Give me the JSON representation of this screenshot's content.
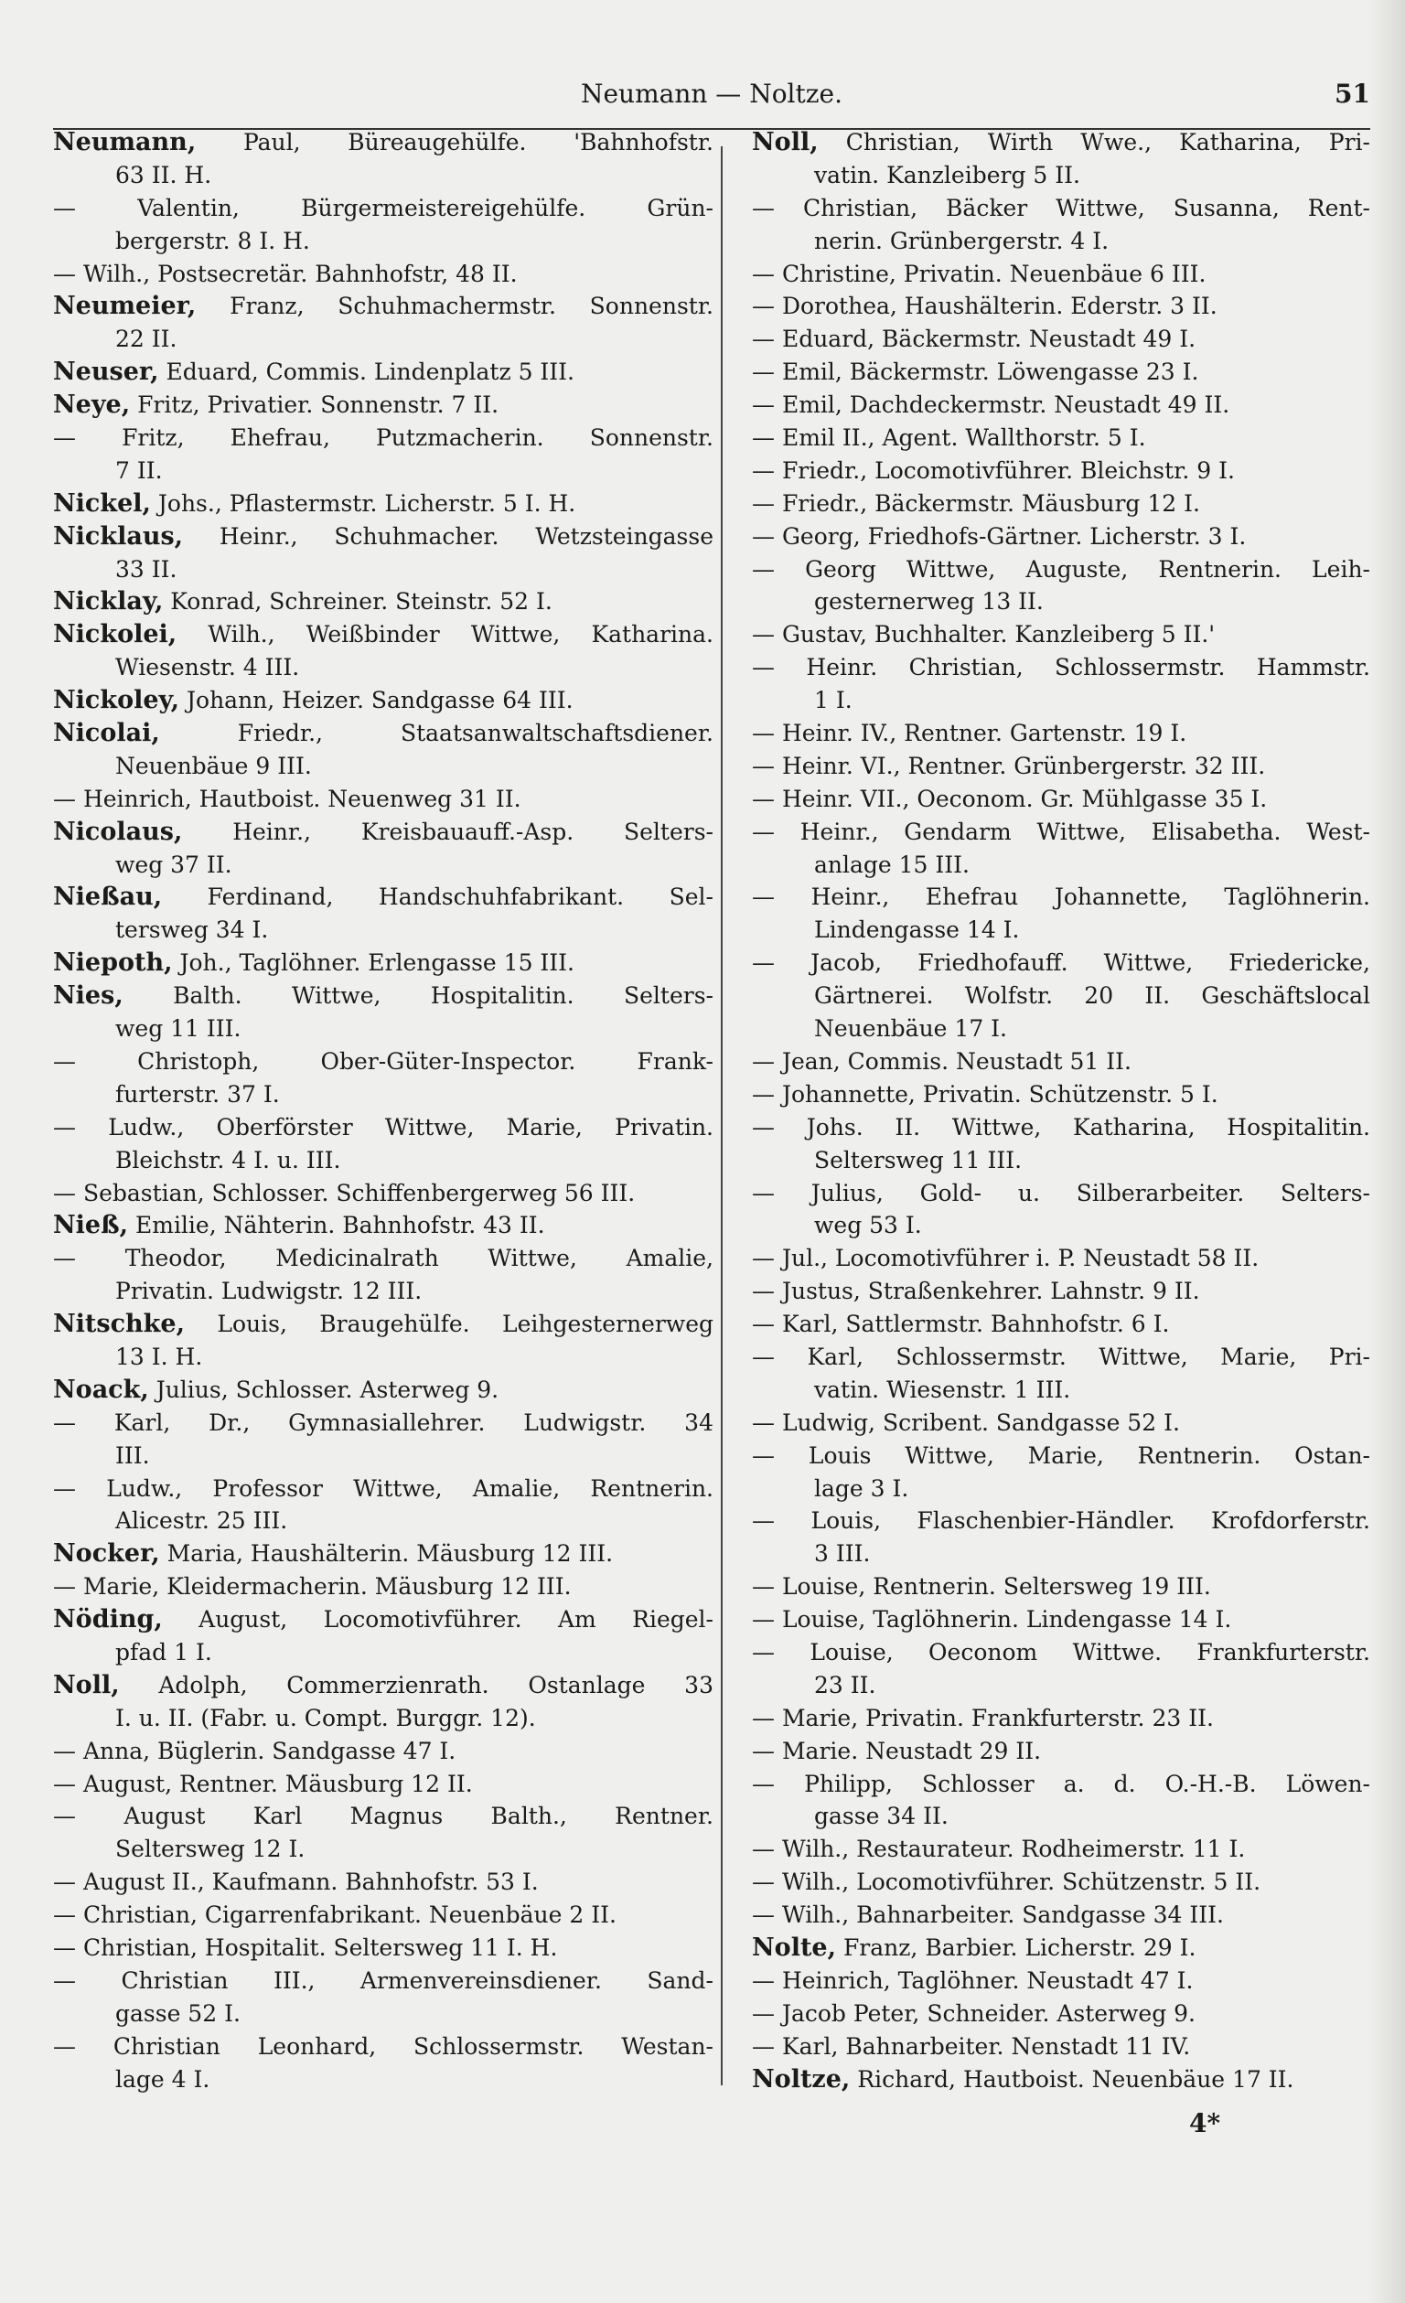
{
  "header": {
    "title": "Neumann — Noltze.",
    "page_number": "51"
  },
  "footer": {
    "signature": "4*"
  },
  "columns": [
    {
      "entries": [
        {
          "name": "Neumann,",
          "lines": [
            "Paul, Büreaugehülfe. 'Bahnhofstr.",
            "63 II. H."
          ]
        },
        {
          "name": "—",
          "lines": [
            "Valentin, Bürgermeistereigehülfe. Grün-",
            "bergerstr. 8 I. H."
          ]
        },
        {
          "name": "—",
          "lines": [
            "Wilh., Postsecretär. Bahnhofstr, 48 II."
          ]
        },
        {
          "name": "Neumeier,",
          "lines": [
            "Franz, Schuhmachermstr. Sonnenstr.",
            "22 II."
          ]
        },
        {
          "name": "Neuser,",
          "lines": [
            "Eduard, Commis. Lindenplatz 5 III."
          ]
        },
        {
          "name": "Neye,",
          "lines": [
            "Fritz, Privatier. Sonnenstr. 7 II."
          ]
        },
        {
          "name": "—",
          "lines": [
            "Fritz, Ehefrau, Putzmacherin. Sonnenstr.",
            "7 II."
          ]
        },
        {
          "name": "Nickel,",
          "lines": [
            "Johs., Pflastermstr. Licherstr. 5 I. H."
          ]
        },
        {
          "name": "Nicklaus,",
          "lines": [
            "Heinr., Schuhmacher. Wetzsteingasse",
            "33 II."
          ]
        },
        {
          "name": "Nicklay,",
          "lines": [
            "Konrad, Schreiner. Steinstr. 52 I."
          ]
        },
        {
          "name": "Nickolei,",
          "lines": [
            "Wilh., Weißbinder Wittwe, Katharina.",
            "Wiesenstr. 4 III."
          ]
        },
        {
          "name": "Nickoley,",
          "lines": [
            "Johann, Heizer. Sandgasse 64 III."
          ]
        },
        {
          "name": "Nicolai,",
          "lines": [
            "Friedr., Staatsanwaltschaftsdiener.",
            "Neuenbäue 9 III."
          ]
        },
        {
          "name": "—",
          "lines": [
            "Heinrich, Hautboist. Neuenweg 31 II."
          ]
        },
        {
          "name": "Nicolaus,",
          "lines": [
            "Heinr., Kreisbauauff.-Asp. Selters-",
            "weg 37 II."
          ]
        },
        {
          "name": "Nießau,",
          "lines": [
            "Ferdinand, Handschuhfabrikant. Sel-",
            "tersweg 34 I."
          ]
        },
        {
          "name": "Niepoth,",
          "lines": [
            "Joh., Taglöhner. Erlengasse 15 III."
          ]
        },
        {
          "name": "Nies,",
          "lines": [
            "Balth. Wittwe, Hospitalitin. Selters-",
            "weg 11 III."
          ]
        },
        {
          "name": "—",
          "lines": [
            "Christoph, Ober-Güter-Inspector. Frank-",
            "furterstr. 37 I."
          ]
        },
        {
          "name": "—",
          "lines": [
            "Ludw., Oberförster Wittwe, Marie, Privatin.",
            "Bleichstr. 4 I. u. III."
          ]
        },
        {
          "name": "—",
          "lines": [
            "Sebastian, Schlosser. Schiffenbergerweg 56 III."
          ]
        },
        {
          "name": "Nieß,",
          "lines": [
            "Emilie, Nähterin. Bahnhofstr. 43 II."
          ]
        },
        {
          "name": "—",
          "lines": [
            "Theodor, Medicinalrath Wittwe, Amalie,",
            "Privatin. Ludwigstr. 12 III."
          ]
        },
        {
          "name": "Nitschke,",
          "lines": [
            "Louis, Braugehülfe. Leihgesternerweg",
            "13 I. H."
          ]
        },
        {
          "name": "Noack,",
          "lines": [
            "Julius, Schlosser. Asterweg 9."
          ]
        },
        {
          "name": "—",
          "lines": [
            "Karl, Dr., Gymnasiallehrer. Ludwigstr. 34",
            "III."
          ]
        },
        {
          "name": "—",
          "lines": [
            "Ludw., Professor Wittwe, Amalie, Rentnerin.",
            "Alicestr. 25 III."
          ]
        },
        {
          "name": "Nocker,",
          "lines": [
            "Maria, Haushälterin. Mäusburg 12 III."
          ]
        },
        {
          "name": "—",
          "lines": [
            "Marie, Kleidermacherin. Mäusburg 12 III."
          ]
        },
        {
          "name": "Nöding,",
          "lines": [
            "August, Locomotivführer. Am Riegel-",
            "pfad 1 I."
          ]
        },
        {
          "name": "Noll,",
          "lines": [
            "Adolph, Commerzienrath. Ostanlage 33",
            "I. u. II. (Fabr. u. Compt. Burggr. 12)."
          ]
        },
        {
          "name": "—",
          "lines": [
            "Anna, Büglerin. Sandgasse 47 I."
          ]
        },
        {
          "name": "—",
          "lines": [
            "August, Rentner. Mäusburg 12 II."
          ]
        },
        {
          "name": "—",
          "lines": [
            "August Karl Magnus Balth., Rentner.",
            "Seltersweg 12 I."
          ]
        },
        {
          "name": "—",
          "lines": [
            "August II., Kaufmann. Bahnhofstr. 53 I."
          ]
        },
        {
          "name": "—",
          "lines": [
            "Christian, Cigarrenfabrikant. Neuenbäue 2 II."
          ]
        },
        {
          "name": "—",
          "lines": [
            "Christian, Hospitalit. Seltersweg 11 I. H."
          ]
        },
        {
          "name": "—",
          "lines": [
            "Christian III., Armenvereinsdiener. Sand-",
            "gasse 52 I."
          ]
        },
        {
          "name": "—",
          "lines": [
            "Christian Leonhard, Schlossermstr. Westan-",
            "lage 4 I."
          ]
        }
      ]
    },
    {
      "entries": [
        {
          "name": "Noll,",
          "lines": [
            "Christian, Wirth Wwe., Katharina, Pri-",
            "vatin. Kanzleiberg 5 II."
          ]
        },
        {
          "name": "—",
          "lines": [
            "Christian, Bäcker Wittwe, Susanna, Rent-",
            "nerin. Grünbergerstr. 4 I."
          ]
        },
        {
          "name": "—",
          "lines": [
            "Christine, Privatin. Neuenbäue 6 III."
          ]
        },
        {
          "name": "—",
          "lines": [
            "Dorothea, Haushälterin. Ederstr. 3 II."
          ]
        },
        {
          "name": "—",
          "lines": [
            "Eduard, Bäckermstr. Neustadt 49 I."
          ]
        },
        {
          "name": "—",
          "lines": [
            "Emil, Bäckermstr. Löwengasse 23 I."
          ]
        },
        {
          "name": "—",
          "lines": [
            "Emil, Dachdeckermstr. Neustadt 49 II."
          ]
        },
        {
          "name": "—",
          "lines": [
            "Emil II., Agent. Wallthorstr. 5 I."
          ]
        },
        {
          "name": "—",
          "lines": [
            "Friedr., Locomotivführer. Bleichstr. 9 I."
          ]
        },
        {
          "name": "—",
          "lines": [
            "Friedr., Bäckermstr. Mäusburg 12 I."
          ]
        },
        {
          "name": "—",
          "lines": [
            "Georg, Friedhofs-Gärtner. Licherstr. 3 I."
          ]
        },
        {
          "name": "—",
          "lines": [
            "Georg Wittwe, Auguste, Rentnerin. Leih-",
            "gesternerweg 13 II."
          ]
        },
        {
          "name": "—",
          "lines": [
            "Gustav, Buchhalter. Kanzleiberg 5 II.'"
          ]
        },
        {
          "name": "—",
          "lines": [
            "Heinr. Christian, Schlossermstr. Hammstr.",
            "1 I."
          ]
        },
        {
          "name": "—",
          "lines": [
            "Heinr. IV., Rentner. Gartenstr. 19 I."
          ]
        },
        {
          "name": "—",
          "lines": [
            "Heinr. VI., Rentner. Grünbergerstr. 32 III."
          ]
        },
        {
          "name": "—",
          "lines": [
            "Heinr. VII., Oeconom. Gr. Mühlgasse 35 I."
          ]
        },
        {
          "name": "—",
          "lines": [
            "Heinr., Gendarm Wittwe, Elisabetha. West-",
            "anlage 15 III."
          ]
        },
        {
          "name": "—",
          "lines": [
            "Heinr., Ehefrau Johannette, Taglöhnerin.",
            "Lindengasse 14 I."
          ]
        },
        {
          "name": "—",
          "lines": [
            "Jacob, Friedhofauff. Wittwe, Friedericke,",
            "Gärtnerei. Wolfstr. 20 II. Geschäftslocal",
            "Neuenbäue 17 I."
          ]
        },
        {
          "name": "—",
          "lines": [
            "Jean, Commis. Neustadt 51 II."
          ]
        },
        {
          "name": "—",
          "lines": [
            "Johannette, Privatin. Schützenstr. 5 I."
          ]
        },
        {
          "name": "—",
          "lines": [
            "Johs. II. Wittwe, Katharina, Hospitalitin.",
            "Seltersweg 11 III."
          ]
        },
        {
          "name": "—",
          "lines": [
            "Julius, Gold- u. Silberarbeiter. Selters-",
            "weg 53 I."
          ]
        },
        {
          "name": "—",
          "lines": [
            "Jul., Locomotivführer i. P. Neustadt 58 II."
          ]
        },
        {
          "name": "—",
          "lines": [
            "Justus, Straßenkehrer. Lahnstr. 9 II."
          ]
        },
        {
          "name": "—",
          "lines": [
            "Karl, Sattlermstr. Bahnhofstr. 6 I."
          ]
        },
        {
          "name": "—",
          "lines": [
            "Karl, Schlossermstr. Wittwe, Marie, Pri-",
            "vatin. Wiesenstr. 1 III."
          ]
        },
        {
          "name": "—",
          "lines": [
            "Ludwig, Scribent. Sandgasse 52 I."
          ]
        },
        {
          "name": "—",
          "lines": [
            "Louis Wittwe, Marie, Rentnerin. Ostan-",
            "lage 3 I."
          ]
        },
        {
          "name": "—",
          "lines": [
            "Louis, Flaschenbier-Händler. Krofdorferstr.",
            "3 III."
          ]
        },
        {
          "name": "—",
          "lines": [
            "Louise, Rentnerin. Seltersweg 19 III."
          ]
        },
        {
          "name": "—",
          "lines": [
            "Louise, Taglöhnerin. Lindengasse 14 I."
          ]
        },
        {
          "name": "—",
          "lines": [
            "Louise, Oeconom Wittwe. Frankfurterstr.",
            "23 II."
          ]
        },
        {
          "name": "—",
          "lines": [
            "Marie, Privatin. Frankfurterstr. 23 II."
          ]
        },
        {
          "name": "—",
          "lines": [
            "Marie. Neustadt 29 II."
          ]
        },
        {
          "name": "—",
          "lines": [
            "Philipp, Schlosser a. d. O.-H.-B. Löwen-",
            "gasse 34 II."
          ]
        },
        {
          "name": "—",
          "lines": [
            "Wilh., Restaurateur. Rodheimerstr. 11 I."
          ]
        },
        {
          "name": "—",
          "lines": [
            "Wilh., Locomotivführer. Schützenstr. 5 II."
          ]
        },
        {
          "name": "—",
          "lines": [
            "Wilh., Bahnarbeiter. Sandgasse 34 III."
          ]
        },
        {
          "name": "Nolte,",
          "lines": [
            "Franz, Barbier. Licherstr. 29 I."
          ]
        },
        {
          "name": "—",
          "lines": [
            "Heinrich, Taglöhner. Neustadt 47 I."
          ]
        },
        {
          "name": "—",
          "lines": [
            "Jacob Peter, Schneider. Asterweg 9."
          ]
        },
        {
          "name": "—",
          "lines": [
            "Karl, Bahnarbeiter. Nenstadt 11 IV."
          ]
        },
        {
          "name": "Noltze,",
          "lines": [
            "Richard, Hautboist. Neuenbäue 17 II."
          ]
        }
      ]
    }
  ]
}
